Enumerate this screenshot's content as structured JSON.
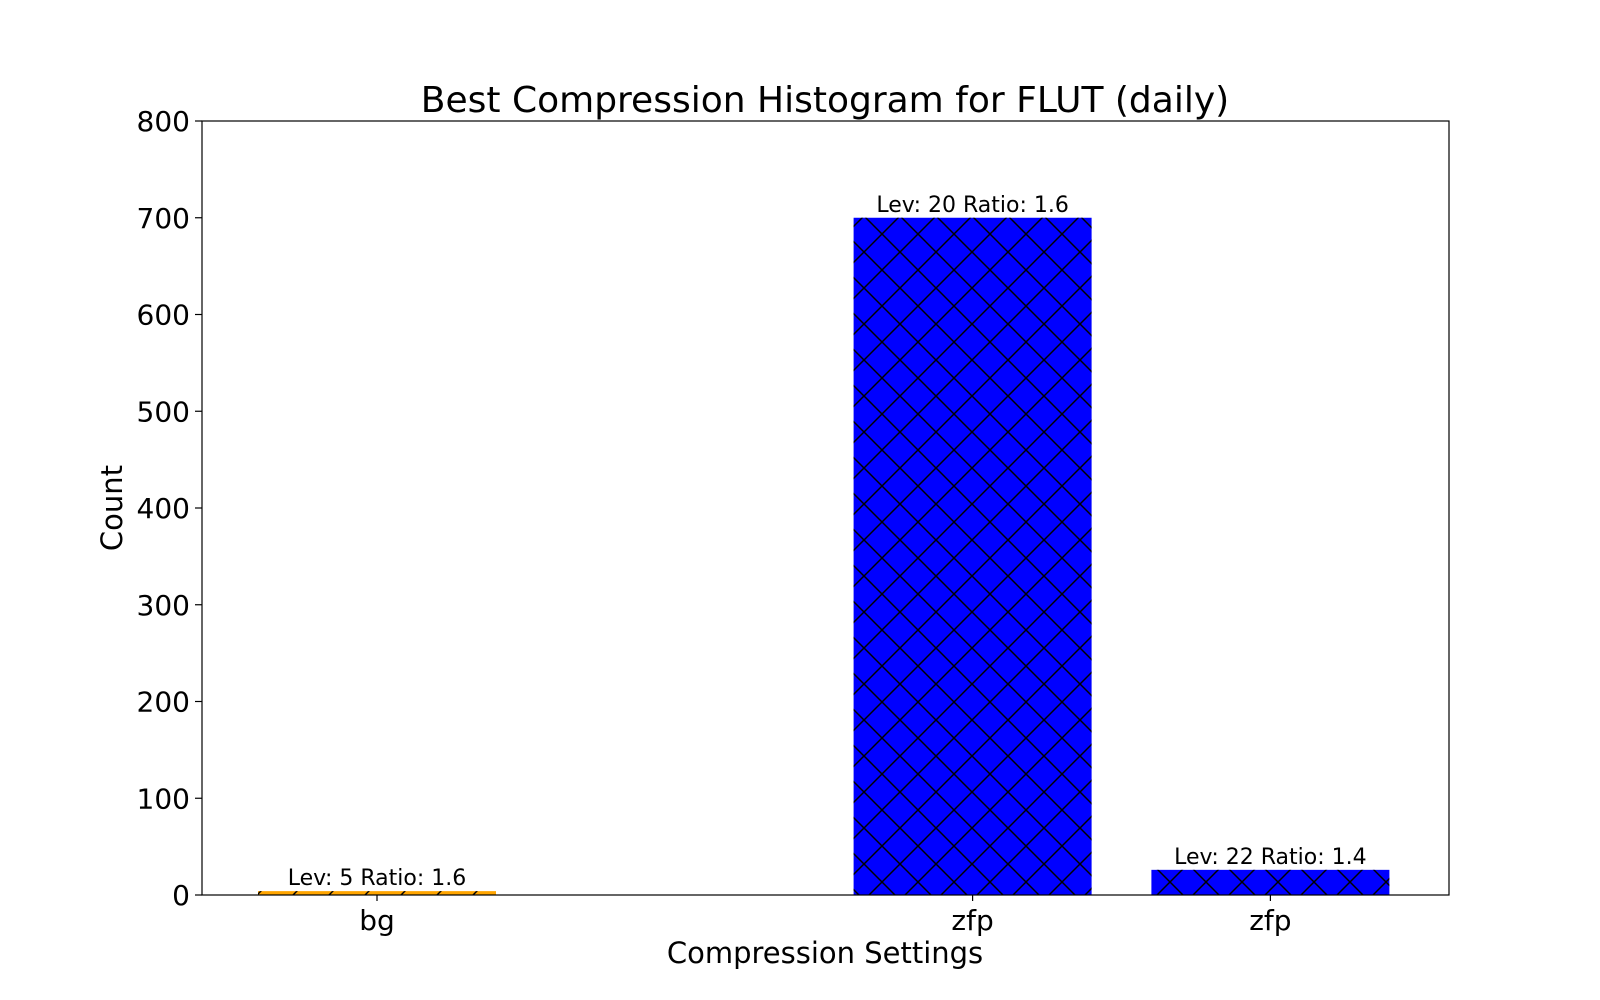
{
  "chart_data": {
    "type": "bar",
    "title": "Best Compression Histogram for FLUT (daily)",
    "xlabel": "Compression Settings",
    "ylabel": "Count",
    "ylim": [
      0,
      800
    ],
    "yticks": [
      0,
      100,
      200,
      300,
      400,
      500,
      600,
      700,
      800
    ],
    "bar_slots": [
      0,
      1,
      2,
      3,
      4
    ],
    "bars": [
      {
        "slot": 0,
        "category": "bg",
        "value": 4,
        "label": "Lev: 5 Ratio: 1.6",
        "color": "#ffa500",
        "hatch": "diagonal"
      },
      {
        "slot": 2,
        "category": "zfp",
        "value": 700,
        "label": "Lev: 20 Ratio: 1.6",
        "color": "#0000ff",
        "hatch": "cross"
      },
      {
        "slot": 3,
        "category": "zfp",
        "value": 26,
        "label": "Lev: 22 Ratio: 1.4",
        "color": "#0000ff",
        "hatch": "cross"
      }
    ],
    "grid": false,
    "legend": "none"
  }
}
